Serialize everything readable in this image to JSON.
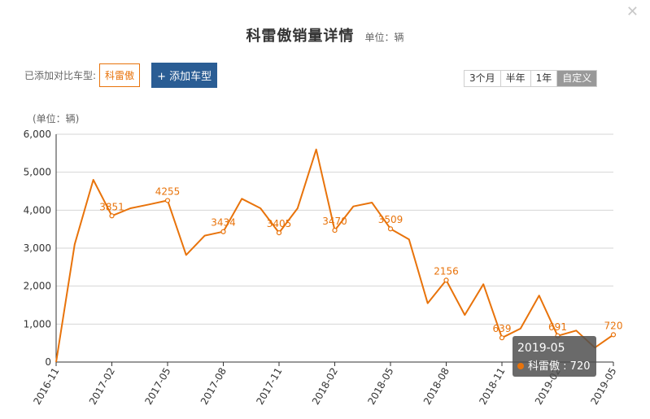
{
  "header": {
    "title": "科雷傲销量详情",
    "unit": "单位：辆",
    "close_icon": "close-icon"
  },
  "compare": {
    "label": "已添加对比车型:",
    "cars": [
      "科雷傲"
    ],
    "add_label": "+ 添加车型"
  },
  "ranges": {
    "options": [
      "3个月",
      "半年",
      "1年",
      "自定义"
    ],
    "selected": "自定义"
  },
  "tooltip": {
    "date": "2019-05",
    "series": "科雷傲",
    "value": "720"
  },
  "colors": {
    "series": "#e8730b",
    "accent": "#2a5d94",
    "grid": "#d6d6d6"
  },
  "chart_data": {
    "type": "line",
    "ylabel": "(单位：辆)",
    "ylim": [
      0,
      6000
    ],
    "yticks": [
      "0",
      "1,000",
      "2,000",
      "3,000",
      "4,000",
      "5,000",
      "6,000"
    ],
    "grid": true,
    "x": [
      "2016-11",
      "2016-12",
      "2017-01",
      "2017-02",
      "2017-03",
      "2017-04",
      "2017-05",
      "2017-06",
      "2017-07",
      "2017-08",
      "2017-09",
      "2017-10",
      "2017-11",
      "2017-12",
      "2018-01",
      "2018-02",
      "2018-03",
      "2018-04",
      "2018-05",
      "2018-06",
      "2018-07",
      "2018-08",
      "2018-09",
      "2018-10",
      "2018-11",
      "2018-12",
      "2019-01",
      "2019-02",
      "2019-03",
      "2019-04",
      "2019-05"
    ],
    "xtick_labels": [
      "2016-11",
      "2017-02",
      "2017-05",
      "2017-08",
      "2017-11",
      "2018-02",
      "2018-05",
      "2018-08",
      "2018-11",
      "2019-02",
      "2019-05"
    ],
    "series": [
      {
        "name": "科雷傲",
        "values": [
          0,
          3100,
          4800,
          3851,
          4050,
          4150,
          4255,
          2820,
          3330,
          3434,
          4300,
          4050,
          3405,
          4050,
          5600,
          3470,
          4100,
          4200,
          3509,
          3230,
          1550,
          2156,
          1240,
          2050,
          639,
          880,
          1750,
          691,
          830,
          380,
          720
        ]
      }
    ],
    "data_labels": [
      {
        "index": 3,
        "text": "3851"
      },
      {
        "index": 6,
        "text": "4255"
      },
      {
        "index": 9,
        "text": "3434"
      },
      {
        "index": 12,
        "text": "3405"
      },
      {
        "index": 15,
        "text": "3470"
      },
      {
        "index": 18,
        "text": "3509"
      },
      {
        "index": 21,
        "text": "2156"
      },
      {
        "index": 24,
        "text": "639"
      },
      {
        "index": 27,
        "text": "691"
      },
      {
        "index": 30,
        "text": "720"
      }
    ]
  }
}
